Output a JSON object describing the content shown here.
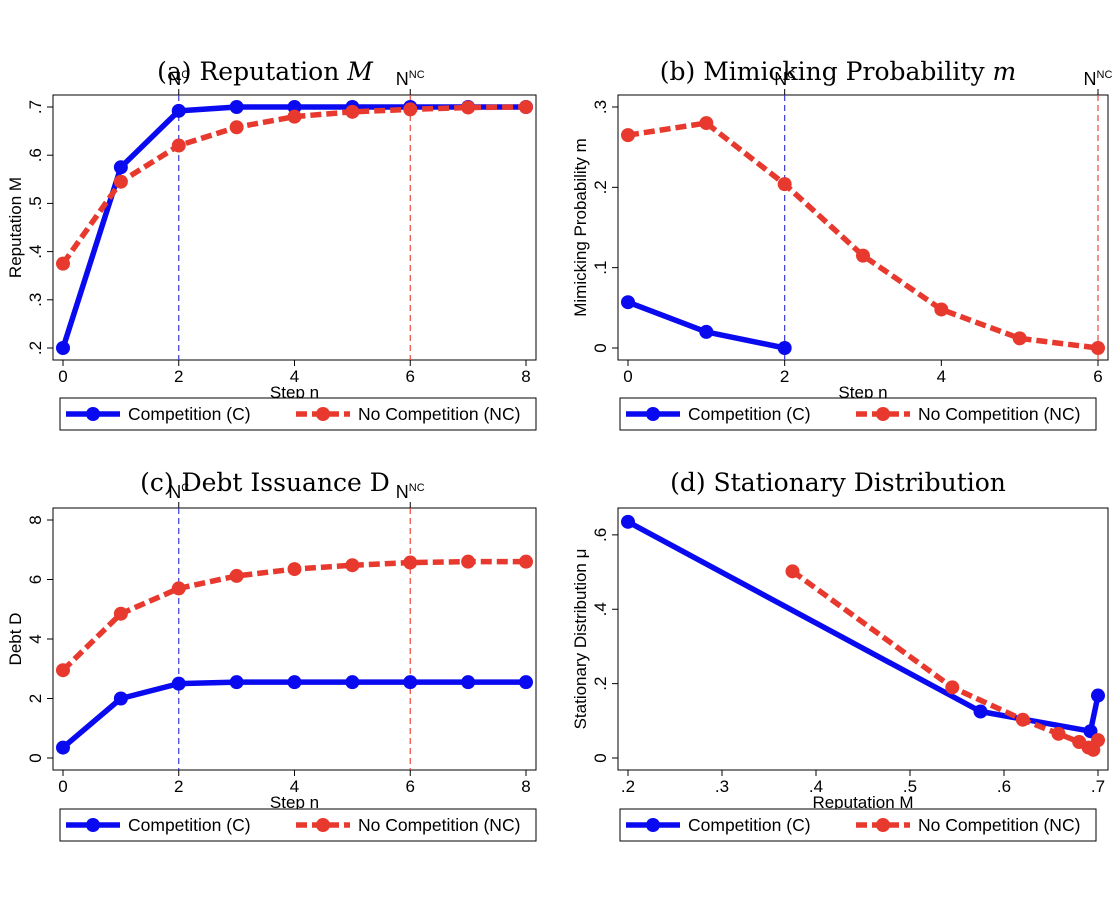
{
  "chart_data": [
    {
      "type": "line",
      "title": "(a) Reputation M",
      "title_parts": [
        "(a) Reputation ",
        "M"
      ],
      "xlabel": "Step n",
      "ylabel": "Reputation M",
      "xlim": [
        0,
        8
      ],
      "ylim": [
        0.2,
        0.7
      ],
      "xticks": [
        0,
        2,
        4,
        6,
        8
      ],
      "xtick_labels": [
        "0",
        "2",
        "4",
        "6",
        "8"
      ],
      "yticks": [
        0.2,
        0.3,
        0.4,
        0.5,
        0.6,
        0.7
      ],
      "ytick_labels": [
        ".2",
        ".3",
        ".4",
        ".5",
        ".6",
        ".7"
      ],
      "grid": false,
      "legend_position": "bottom",
      "ref_lines": [
        {
          "x": 2,
          "label_main": "N",
          "label_sup": "C",
          "color": "#3a3ad8"
        },
        {
          "x": 6,
          "label_main": "N",
          "label_sup": "NC",
          "color": "#e8493c"
        }
      ],
      "series": [
        {
          "name": "Competition (C)",
          "color": "#0a0af0",
          "style": "solid",
          "x": [
            0,
            1,
            2,
            3,
            4,
            5,
            6,
            7,
            8
          ],
          "y": [
            0.2,
            0.575,
            0.692,
            0.7,
            0.7,
            0.7,
            0.7,
            0.7,
            0.7
          ]
        },
        {
          "name": "No Competition (NC)",
          "color": "#e8392e",
          "style": "dashed",
          "x": [
            0,
            1,
            2,
            3,
            4,
            5,
            6,
            7,
            8
          ],
          "y": [
            0.375,
            0.545,
            0.62,
            0.658,
            0.68,
            0.69,
            0.695,
            0.699,
            0.7
          ]
        }
      ]
    },
    {
      "type": "line",
      "title": "(b) Mimicking Probability m",
      "title_parts": [
        "(b) Mimicking Probability ",
        "m"
      ],
      "xlabel": "Step n",
      "ylabel": "Mimicking Probability m",
      "xlim": [
        0,
        6
      ],
      "ylim": [
        0,
        0.3
      ],
      "xticks": [
        0,
        2,
        4,
        6
      ],
      "xtick_labels": [
        "0",
        "2",
        "4",
        "6"
      ],
      "yticks": [
        0,
        0.1,
        0.2,
        0.3
      ],
      "ytick_labels": [
        "0",
        ".1",
        ".2",
        ".3"
      ],
      "grid": false,
      "legend_position": "bottom",
      "ref_lines": [
        {
          "x": 2,
          "label_main": "N",
          "label_sup": "C",
          "color": "#3a3ad8"
        },
        {
          "x": 6,
          "label_main": "N",
          "label_sup": "NC",
          "color": "#e8493c"
        }
      ],
      "series": [
        {
          "name": "Competition (C)",
          "color": "#0a0af0",
          "style": "solid",
          "x": [
            0,
            1,
            2
          ],
          "y": [
            0.057,
            0.02,
            0.0
          ]
        },
        {
          "name": "No Competition (NC)",
          "color": "#e8392e",
          "style": "dashed",
          "x": [
            0,
            1,
            2,
            3,
            4,
            5,
            6
          ],
          "y": [
            0.265,
            0.28,
            0.204,
            0.115,
            0.048,
            0.012,
            0.0
          ]
        }
      ]
    },
    {
      "type": "line",
      "title": "(c) Debt Issuance D",
      "title_parts": [
        "(c) Debt Issuance D",
        ""
      ],
      "xlabel": "Step n",
      "ylabel": "Debt D",
      "xlim": [
        0,
        8
      ],
      "ylim": [
        0,
        8
      ],
      "xticks": [
        0,
        2,
        4,
        6,
        8
      ],
      "xtick_labels": [
        "0",
        "2",
        "4",
        "6",
        "8"
      ],
      "yticks": [
        0,
        2,
        4,
        6,
        8
      ],
      "ytick_labels": [
        "0",
        "2",
        "4",
        "6",
        "8"
      ],
      "grid": false,
      "legend_position": "bottom",
      "ref_lines": [
        {
          "x": 2,
          "label_main": "N",
          "label_sup": "C",
          "color": "#3a3ad8"
        },
        {
          "x": 6,
          "label_main": "N",
          "label_sup": "NC",
          "color": "#e8493c"
        }
      ],
      "series": [
        {
          "name": "Competition (C)",
          "color": "#0a0af0",
          "style": "solid",
          "x": [
            0,
            1,
            2,
            3,
            4,
            5,
            6,
            7,
            8
          ],
          "y": [
            0.35,
            2.0,
            2.5,
            2.55,
            2.55,
            2.55,
            2.55,
            2.55,
            2.55
          ]
        },
        {
          "name": "No Competition (NC)",
          "color": "#e8392e",
          "style": "dashed",
          "x": [
            0,
            1,
            2,
            3,
            4,
            5,
            6,
            7,
            8
          ],
          "y": [
            2.95,
            4.85,
            5.7,
            6.12,
            6.35,
            6.48,
            6.57,
            6.6,
            6.6
          ]
        }
      ]
    },
    {
      "type": "line",
      "title": "(d) Stationary Distribution",
      "title_parts": [
        "(d) Stationary Distribution",
        ""
      ],
      "xlabel": "Reputation M",
      "ylabel": "Stationary Distribution μ",
      "xlim": [
        0.2,
        0.7
      ],
      "ylim": [
        0,
        0.64
      ],
      "xticks": [
        0.2,
        0.3,
        0.4,
        0.5,
        0.6,
        0.7
      ],
      "xtick_labels": [
        ".2",
        ".3",
        ".4",
        ".5",
        ".6",
        ".7"
      ],
      "yticks": [
        0,
        0.2,
        0.4,
        0.6
      ],
      "ytick_labels": [
        "0",
        ".2",
        ".4",
        ".6"
      ],
      "grid": false,
      "legend_position": "bottom",
      "ref_lines": [],
      "series": [
        {
          "name": "Competition (C)",
          "color": "#0a0af0",
          "style": "solid",
          "x": [
            0.2,
            0.575,
            0.692,
            0.7
          ],
          "y": [
            0.635,
            0.125,
            0.072,
            0.168
          ]
        },
        {
          "name": "No Competition (NC)",
          "color": "#e8392e",
          "style": "dashed",
          "x": [
            0.375,
            0.545,
            0.62,
            0.658,
            0.68,
            0.69,
            0.695,
            0.7
          ],
          "y": [
            0.502,
            0.19,
            0.103,
            0.065,
            0.043,
            0.028,
            0.022,
            0.048
          ]
        }
      ]
    }
  ]
}
